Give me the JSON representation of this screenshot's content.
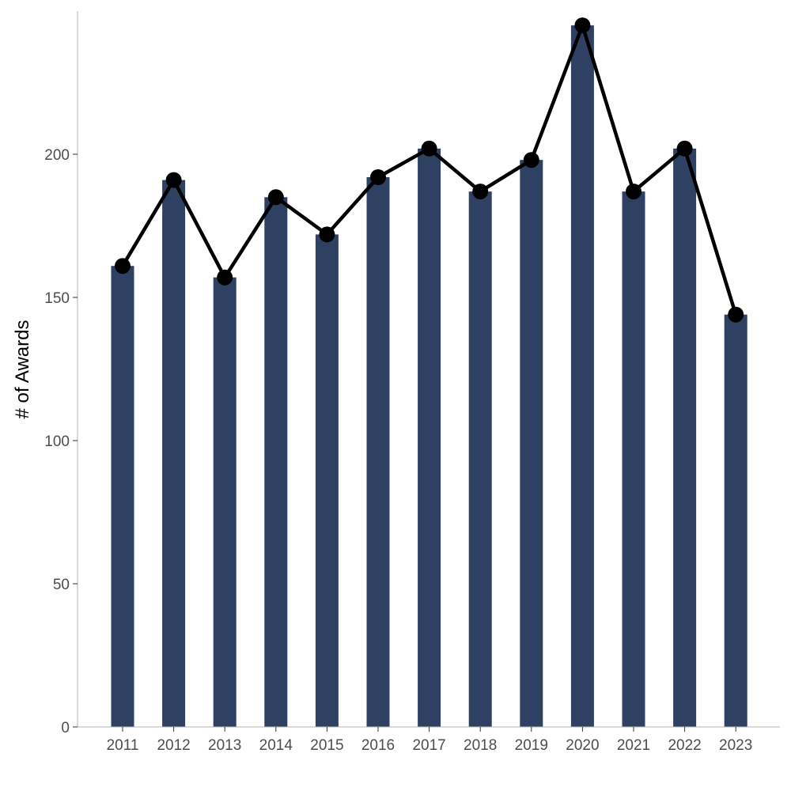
{
  "chart_data": {
    "type": "bar",
    "title": "",
    "xlabel": "",
    "ylabel": "# of Awards",
    "categories": [
      "2011",
      "2012",
      "2013",
      "2014",
      "2015",
      "2016",
      "2017",
      "2018",
      "2019",
      "2020",
      "2021",
      "2022",
      "2023"
    ],
    "values": [
      161,
      191,
      157,
      185,
      172,
      192,
      202,
      187,
      198,
      245,
      187,
      202,
      144
    ],
    "overlay_line": {
      "type": "line",
      "markers": "filled-circle",
      "values": [
        161,
        191,
        157,
        185,
        172,
        192,
        202,
        187,
        198,
        245,
        187,
        202,
        144
      ]
    },
    "y_ticks": [
      "0",
      "50",
      "100",
      "150",
      "200"
    ],
    "ylim": [
      0,
      245
    ],
    "grid": false,
    "legend": "none",
    "colors": {
      "bar": "#2e4163",
      "line": "#000000",
      "axis": "#b3b3b3",
      "tick_label": "#4d4d4d"
    }
  }
}
